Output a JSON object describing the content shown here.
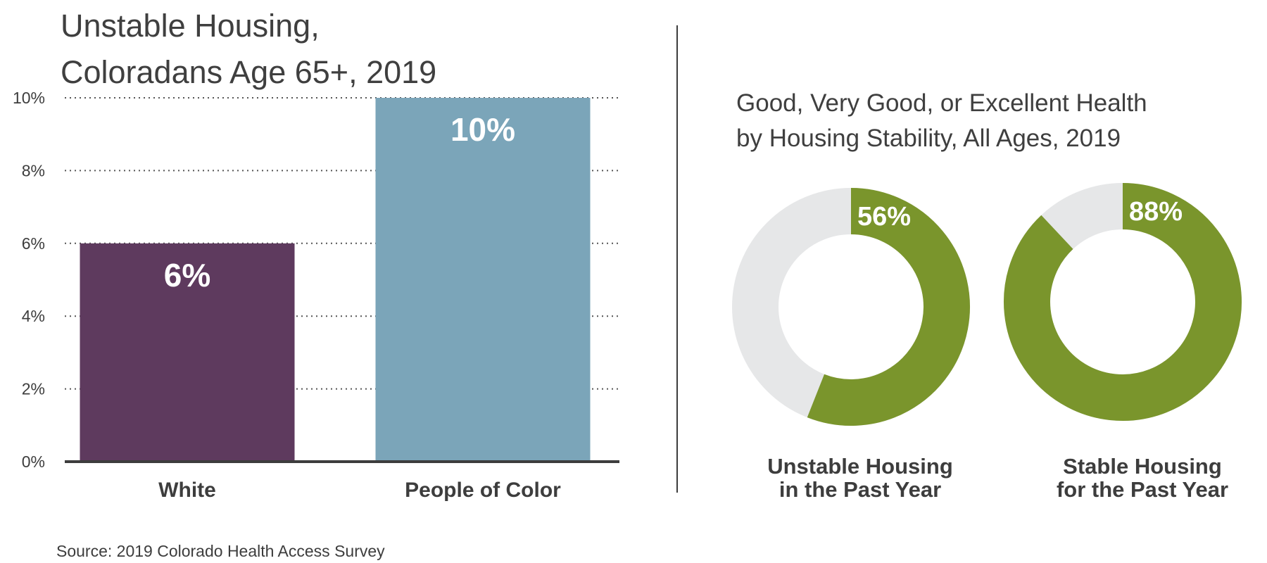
{
  "left_chart": {
    "title_line1": "Unstable Housing,",
    "title_line2": "Coloradans Age 65+, 2019"
  },
  "right_chart": {
    "title_line1": "Good, Very Good, or Excellent Health",
    "title_line2": "by Housing Stability, All Ages, 2019"
  },
  "source": "Source: 2019 Colorado Health Access Survey",
  "chart_data": [
    {
      "type": "bar",
      "title": "Unstable Housing, Coloradans Age 65+, 2019",
      "categories": [
        "White",
        "People of Color"
      ],
      "values": [
        6,
        10
      ],
      "value_labels": [
        "6%",
        "10%"
      ],
      "colors": [
        "#5e3a5e",
        "#7ba5b9"
      ],
      "ylim": [
        0,
        10
      ],
      "yticks": [
        "0%",
        "2%",
        "4%",
        "6%",
        "8%",
        "10%"
      ],
      "grid": "dotted horizontal"
    },
    {
      "type": "pie",
      "title": "Good, Very Good, or Excellent Health by Housing Stability, All Ages, 2019",
      "donuts": [
        {
          "label_line1": "Unstable Housing",
          "label_line2": "in the Past Year",
          "value": 56,
          "value_label": "56%"
        },
        {
          "label_line1": "Stable Housing",
          "label_line2": "for the Past Year",
          "value": 88,
          "value_label": "88%"
        }
      ],
      "fill_color": "#7a952c",
      "remainder_color": "#e6e7e8"
    }
  ]
}
